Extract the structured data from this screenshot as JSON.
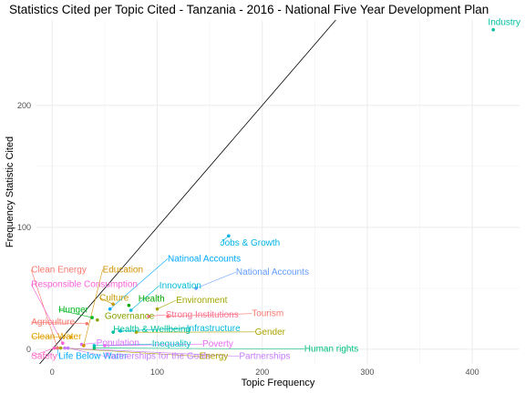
{
  "chart_data": {
    "type": "scatter",
    "title": "Statistics Cited per Topic Cited - Tanzania - 2016 - National Five Year Development Plan",
    "xlabel": "Topic Frequency",
    "ylabel": "Frequency Statistic Cited",
    "xlim": [
      -15,
      445
    ],
    "ylim": [
      -12,
      270
    ],
    "xticks": [
      0,
      100,
      200,
      300,
      400
    ],
    "yticks": [
      0,
      100,
      200
    ],
    "reference_line": "y = x",
    "grid": true,
    "legend": "none",
    "points": [
      {
        "label": "Industry",
        "x": 420,
        "y": 262,
        "color": "#00BFA0",
        "lx": 415,
        "ly": 266
      },
      {
        "label": "Jobs & Growth",
        "x": 168,
        "y": 93,
        "color": "#00B2E3",
        "lx": 160,
        "ly": 85
      },
      {
        "label": "National Accounts",
        "x": 137,
        "y": 50,
        "color": "#619CFF",
        "lx": 175,
        "ly": 61
      },
      {
        "label": "Natinoal Accounts",
        "x": 55,
        "y": 33,
        "color": "#00A9FF",
        "lx": 110,
        "ly": 72
      },
      {
        "label": "Innovation",
        "x": 75,
        "y": 32,
        "color": "#00BCD8",
        "lx": 102,
        "ly": 50
      },
      {
        "label": "Environment",
        "x": 100,
        "y": 33,
        "color": "#A3A500",
        "lx": 118,
        "ly": 38
      },
      {
        "label": "Health",
        "x": 73,
        "y": 36,
        "color": "#00A600",
        "lx": 82,
        "ly": 39
      },
      {
        "label": "Culture",
        "x": 58,
        "y": 37,
        "color": "#C49A00",
        "lx": 45,
        "ly": 40
      },
      {
        "label": "Governance",
        "x": 43,
        "y": 24,
        "color": "#87A000",
        "lx": 50,
        "ly": 25
      },
      {
        "label": "Strong Institutions",
        "x": 92,
        "y": 27,
        "color": "#FF6C91",
        "lx": 108,
        "ly": 26
      },
      {
        "label": "Tourism",
        "x": 110,
        "y": 27,
        "color": "#F8766D",
        "lx": 190,
        "ly": 27
      },
      {
        "label": "Hunger",
        "x": 38,
        "y": 26,
        "color": "#00B81F",
        "lx": 6,
        "ly": 30
      },
      {
        "label": "Agriculture",
        "x": 33,
        "y": 21,
        "color": "#F8766D",
        "lx": -20,
        "ly": 20
      },
      {
        "label": "Health & Wellbeing",
        "x": 58,
        "y": 14,
        "color": "#00C19A",
        "lx": 58,
        "ly": 14
      },
      {
        "label": "Infrastructure",
        "x": 65,
        "y": 15,
        "color": "#00BADE",
        "lx": 128,
        "ly": 15
      },
      {
        "label": "Gender",
        "x": 80,
        "y": 14,
        "color": "#ABA300",
        "lx": 193,
        "ly": 12
      },
      {
        "label": "Clean Water",
        "x": 18,
        "y": 10,
        "color": "#E2A100",
        "lx": -20,
        "ly": 8
      },
      {
        "label": "Population",
        "x": 28,
        "y": 4,
        "color": "#DC71FA",
        "lx": 42,
        "ly": 3
      },
      {
        "label": "Inequality",
        "x": 40,
        "y": 3,
        "color": "#00BFC4",
        "lx": 95,
        "ly": 2
      },
      {
        "label": "Poverty",
        "x": 50,
        "y": 3,
        "color": "#E76BF3",
        "lx": 143,
        "ly": 2
      },
      {
        "label": "Human rights",
        "x": 40,
        "y": 1,
        "color": "#00BF7D",
        "lx": 240,
        "ly": -2
      },
      {
        "label": "Safety",
        "x": 2,
        "y": 1,
        "color": "#FF61C3",
        "lx": -20,
        "ly": -8
      },
      {
        "label": "Life Below Water",
        "x": 5,
        "y": 1,
        "color": "#00ABFD",
        "lx": 6,
        "ly": -8
      },
      {
        "label": "Partnerships for the Goals",
        "x": 15,
        "y": 1,
        "color": "#C77CFF",
        "lx": 50,
        "ly": -8
      },
      {
        "label": "Energy",
        "x": 8,
        "y": 1,
        "color": "#ABA300",
        "lx": 140,
        "ly": -8
      },
      {
        "label": "Partnerships",
        "x": 12,
        "y": 1,
        "color": "#C77CFF",
        "lx": 178,
        "ly": -8
      },
      {
        "label": "Clean Energy",
        "x": 5,
        "y": 1,
        "color": "#F8766D",
        "lx": -20,
        "ly": 63
      },
      {
        "label": "Education",
        "x": 30,
        "y": 3,
        "color": "#D39200",
        "lx": 48,
        "ly": 63
      },
      {
        "label": "Responsible Consumption",
        "x": 10,
        "y": 5,
        "color": "#FB61D7",
        "lx": -20,
        "ly": 51
      }
    ]
  }
}
